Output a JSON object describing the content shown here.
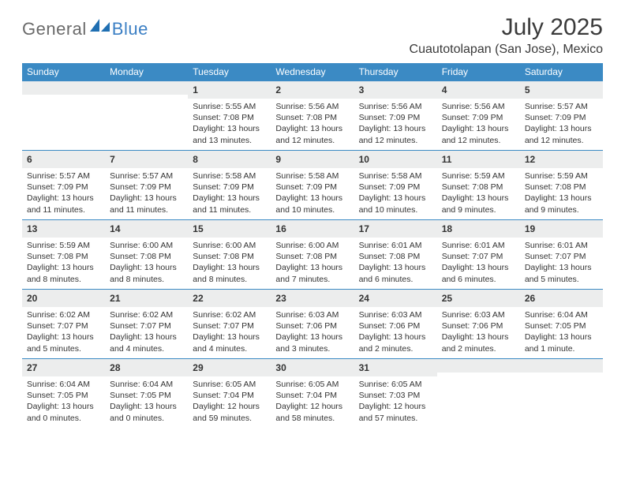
{
  "brand": {
    "general": "General",
    "blue": "Blue"
  },
  "title": "July 2025",
  "location": "Cuautotolapan (San Jose), Mexico",
  "colors": {
    "header_bg": "#3b8ac4",
    "header_text": "#ffffff",
    "daynum_bg": "#eceded",
    "row_border": "#3b8ac4",
    "logo_gray": "#6a6a6a",
    "logo_blue": "#3b7fc4"
  },
  "weekdays": [
    "Sunday",
    "Monday",
    "Tuesday",
    "Wednesday",
    "Thursday",
    "Friday",
    "Saturday"
  ],
  "leading_blanks": 2,
  "days": [
    {
      "n": 1,
      "sunrise": "5:55 AM",
      "sunset": "7:08 PM",
      "daylight": "13 hours and 13 minutes."
    },
    {
      "n": 2,
      "sunrise": "5:56 AM",
      "sunset": "7:08 PM",
      "daylight": "13 hours and 12 minutes."
    },
    {
      "n": 3,
      "sunrise": "5:56 AM",
      "sunset": "7:09 PM",
      "daylight": "13 hours and 12 minutes."
    },
    {
      "n": 4,
      "sunrise": "5:56 AM",
      "sunset": "7:09 PM",
      "daylight": "13 hours and 12 minutes."
    },
    {
      "n": 5,
      "sunrise": "5:57 AM",
      "sunset": "7:09 PM",
      "daylight": "13 hours and 12 minutes."
    },
    {
      "n": 6,
      "sunrise": "5:57 AM",
      "sunset": "7:09 PM",
      "daylight": "13 hours and 11 minutes."
    },
    {
      "n": 7,
      "sunrise": "5:57 AM",
      "sunset": "7:09 PM",
      "daylight": "13 hours and 11 minutes."
    },
    {
      "n": 8,
      "sunrise": "5:58 AM",
      "sunset": "7:09 PM",
      "daylight": "13 hours and 11 minutes."
    },
    {
      "n": 9,
      "sunrise": "5:58 AM",
      "sunset": "7:09 PM",
      "daylight": "13 hours and 10 minutes."
    },
    {
      "n": 10,
      "sunrise": "5:58 AM",
      "sunset": "7:09 PM",
      "daylight": "13 hours and 10 minutes."
    },
    {
      "n": 11,
      "sunrise": "5:59 AM",
      "sunset": "7:08 PM",
      "daylight": "13 hours and 9 minutes."
    },
    {
      "n": 12,
      "sunrise": "5:59 AM",
      "sunset": "7:08 PM",
      "daylight": "13 hours and 9 minutes."
    },
    {
      "n": 13,
      "sunrise": "5:59 AM",
      "sunset": "7:08 PM",
      "daylight": "13 hours and 8 minutes."
    },
    {
      "n": 14,
      "sunrise": "6:00 AM",
      "sunset": "7:08 PM",
      "daylight": "13 hours and 8 minutes."
    },
    {
      "n": 15,
      "sunrise": "6:00 AM",
      "sunset": "7:08 PM",
      "daylight": "13 hours and 8 minutes."
    },
    {
      "n": 16,
      "sunrise": "6:00 AM",
      "sunset": "7:08 PM",
      "daylight": "13 hours and 7 minutes."
    },
    {
      "n": 17,
      "sunrise": "6:01 AM",
      "sunset": "7:08 PM",
      "daylight": "13 hours and 6 minutes."
    },
    {
      "n": 18,
      "sunrise": "6:01 AM",
      "sunset": "7:07 PM",
      "daylight": "13 hours and 6 minutes."
    },
    {
      "n": 19,
      "sunrise": "6:01 AM",
      "sunset": "7:07 PM",
      "daylight": "13 hours and 5 minutes."
    },
    {
      "n": 20,
      "sunrise": "6:02 AM",
      "sunset": "7:07 PM",
      "daylight": "13 hours and 5 minutes."
    },
    {
      "n": 21,
      "sunrise": "6:02 AM",
      "sunset": "7:07 PM",
      "daylight": "13 hours and 4 minutes."
    },
    {
      "n": 22,
      "sunrise": "6:02 AM",
      "sunset": "7:07 PM",
      "daylight": "13 hours and 4 minutes."
    },
    {
      "n": 23,
      "sunrise": "6:03 AM",
      "sunset": "7:06 PM",
      "daylight": "13 hours and 3 minutes."
    },
    {
      "n": 24,
      "sunrise": "6:03 AM",
      "sunset": "7:06 PM",
      "daylight": "13 hours and 2 minutes."
    },
    {
      "n": 25,
      "sunrise": "6:03 AM",
      "sunset": "7:06 PM",
      "daylight": "13 hours and 2 minutes."
    },
    {
      "n": 26,
      "sunrise": "6:04 AM",
      "sunset": "7:05 PM",
      "daylight": "13 hours and 1 minute."
    },
    {
      "n": 27,
      "sunrise": "6:04 AM",
      "sunset": "7:05 PM",
      "daylight": "13 hours and 0 minutes."
    },
    {
      "n": 28,
      "sunrise": "6:04 AM",
      "sunset": "7:05 PM",
      "daylight": "13 hours and 0 minutes."
    },
    {
      "n": 29,
      "sunrise": "6:05 AM",
      "sunset": "7:04 PM",
      "daylight": "12 hours and 59 minutes."
    },
    {
      "n": 30,
      "sunrise": "6:05 AM",
      "sunset": "7:04 PM",
      "daylight": "12 hours and 58 minutes."
    },
    {
      "n": 31,
      "sunrise": "6:05 AM",
      "sunset": "7:03 PM",
      "daylight": "12 hours and 57 minutes."
    }
  ],
  "labels": {
    "sunrise_prefix": "Sunrise: ",
    "sunset_prefix": "Sunset: ",
    "daylight_prefix": "Daylight: "
  }
}
